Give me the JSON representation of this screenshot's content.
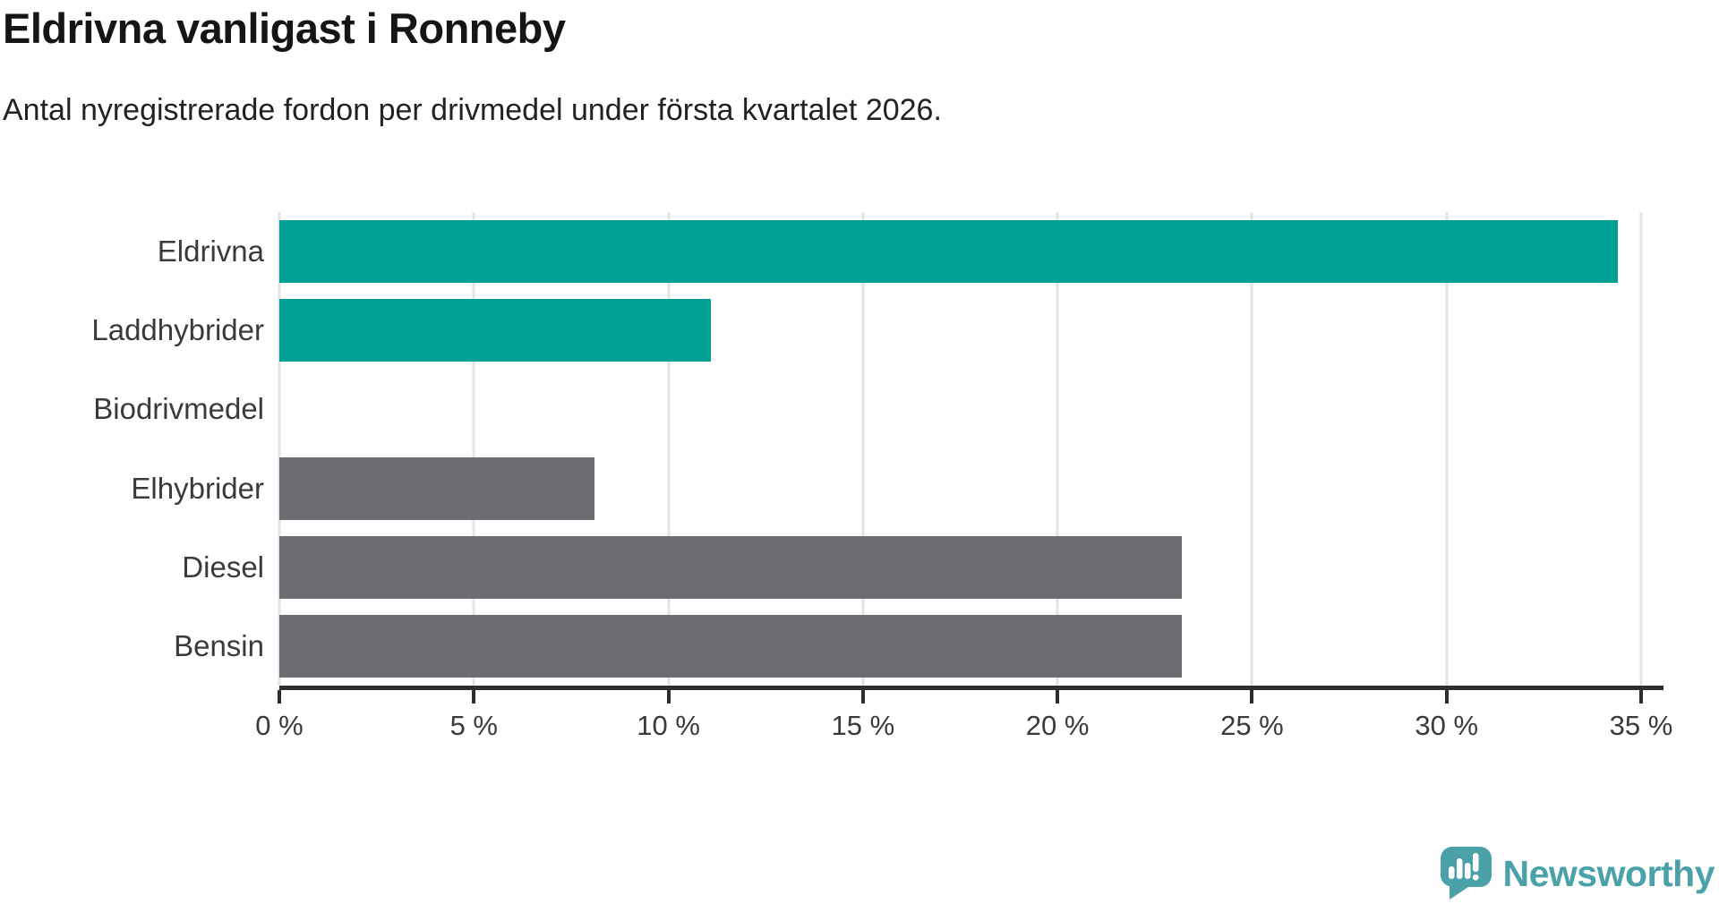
{
  "header": {
    "title": "Eldrivna vanligast i Ronneby",
    "subtitle": "Antal nyregistrerade fordon per drivmedel under första kvartalet 2026."
  },
  "chart_data": {
    "type": "bar",
    "orientation": "horizontal",
    "title": "Eldrivna vanligast i Ronneby",
    "subtitle": "Antal nyregistrerade fordon per drivmedel under första kvartalet 2026.",
    "categories": [
      "Eldrivna",
      "Laddhybrider",
      "Biodrivmedel",
      "Elhybrider",
      "Diesel",
      "Bensin"
    ],
    "values": [
      34.4,
      11.1,
      0,
      8.1,
      23.2,
      23.2
    ],
    "unit": "%",
    "bar_colors": [
      "#00A096",
      "#00A096",
      "#6C6C72",
      "#6C6C72",
      "#6C6C72",
      "#6C6C72"
    ],
    "xlim": [
      0,
      35
    ],
    "x_ticks": [
      {
        "value": 0,
        "label": "0 %"
      },
      {
        "value": 5,
        "label": "5 %"
      },
      {
        "value": 10,
        "label": "10 %"
      },
      {
        "value": 15,
        "label": "15 %"
      },
      {
        "value": 20,
        "label": "20 %"
      },
      {
        "value": 25,
        "label": "25 %"
      },
      {
        "value": 30,
        "label": "30 %"
      },
      {
        "value": 35,
        "label": "35 %"
      }
    ],
    "grid": true,
    "legend": "none",
    "ylabel": "",
    "xlabel": ""
  },
  "colors": {
    "highlight": "#00A096",
    "neutral": "#6C6C72",
    "axis": "#2D2D2D",
    "gridline": "#E3E3E3",
    "logo": "#4BA1A8"
  },
  "footer": {
    "logo_text": "Newsworthy"
  }
}
